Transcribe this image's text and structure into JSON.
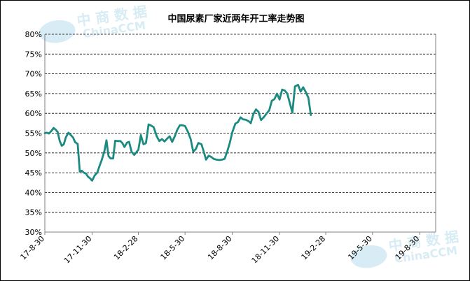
{
  "colors": {
    "line": "#1b8a80",
    "grid": "#000000",
    "axis": "#808080",
    "text": "#000000",
    "watermark": "#d7ecf4"
  },
  "watermark": {
    "chinese": "中 商 数 据",
    "latin": "ChinaCCM"
  },
  "chart_data": {
    "type": "line",
    "title": "中国尿素厂家近两年开工率走势图",
    "xlabel": "",
    "ylabel": "",
    "y_unit": "%",
    "ylim": [
      30,
      80
    ],
    "y_ticks": [
      30,
      35,
      40,
      45,
      50,
      55,
      60,
      65,
      70,
      75,
      80
    ],
    "y_tick_labels": [
      "30%",
      "35%",
      "40%",
      "45%",
      "50%",
      "55%",
      "60%",
      "65%",
      "70%",
      "75%",
      "80%"
    ],
    "grid": true,
    "legend": "none",
    "x_start": "17-8-30",
    "x_end": "19-9-30",
    "x_tick_labels": [
      "17-8-30",
      "17-11-30",
      "18-2-28",
      "18-5-30",
      "18-8-30",
      "18-11-30",
      "19-2-28",
      "19-5-30",
      "19-8-30"
    ],
    "series": [
      {
        "points": [
          [
            "17-8-30",
            55.0
          ],
          [
            "17-9-3",
            55.1
          ],
          [
            "17-9-7",
            54.9
          ],
          [
            "17-9-12",
            55.6
          ],
          [
            "17-9-16",
            56.3
          ],
          [
            "17-9-20",
            55.9
          ],
          [
            "17-9-24",
            55.3
          ],
          [
            "17-9-28",
            53.0
          ],
          [
            "17-10-2",
            51.8
          ],
          [
            "17-10-6",
            52.2
          ],
          [
            "17-10-10",
            54.0
          ],
          [
            "17-10-15",
            55.1
          ],
          [
            "17-10-19",
            54.6
          ],
          [
            "17-10-24",
            53.9
          ],
          [
            "17-10-28",
            52.7
          ],
          [
            "17-11-2",
            52.3
          ],
          [
            "17-11-6",
            45.3
          ],
          [
            "17-11-10",
            45.5
          ],
          [
            "17-11-14",
            45.0
          ],
          [
            "17-11-18",
            44.8
          ],
          [
            "17-11-22",
            44.0
          ],
          [
            "17-11-26",
            43.6
          ],
          [
            "17-11-30",
            43.0
          ],
          [
            "17-12-5",
            44.3
          ],
          [
            "17-12-10",
            45.0
          ],
          [
            "17-12-14",
            46.5
          ],
          [
            "17-12-19",
            48.3
          ],
          [
            "17-12-24",
            50.5
          ],
          [
            "17-12-28",
            53.2
          ],
          [
            "18-1-1",
            49.2
          ],
          [
            "18-1-5",
            48.6
          ],
          [
            "18-1-10",
            48.6
          ],
          [
            "18-1-14",
            53.1
          ],
          [
            "18-1-19",
            53.0
          ],
          [
            "18-1-24",
            53.0
          ],
          [
            "18-1-28",
            52.5
          ],
          [
            "18-2-1",
            51.5
          ],
          [
            "18-2-6",
            52.6
          ],
          [
            "18-2-10",
            52.8
          ],
          [
            "18-2-15",
            50.3
          ],
          [
            "18-2-20",
            49.5
          ],
          [
            "18-2-28",
            50.8
          ],
          [
            "18-3-5",
            54.5
          ],
          [
            "18-3-10",
            52.2
          ],
          [
            "18-3-15",
            52.5
          ],
          [
            "18-3-20",
            57.2
          ],
          [
            "18-3-25",
            56.9
          ],
          [
            "18-3-30",
            56.5
          ],
          [
            "18-4-5",
            54.2
          ],
          [
            "18-4-10",
            53.0
          ],
          [
            "18-4-15",
            53.5
          ],
          [
            "18-4-20",
            52.9
          ],
          [
            "18-4-25",
            53.6
          ],
          [
            "18-4-30",
            54.2
          ],
          [
            "18-5-5",
            52.8
          ],
          [
            "18-5-10",
            54.2
          ],
          [
            "18-5-15",
            55.9
          ],
          [
            "18-5-20",
            57.0
          ],
          [
            "18-5-25",
            57.0
          ],
          [
            "18-5-30",
            56.8
          ],
          [
            "18-6-5",
            55.2
          ],
          [
            "18-6-10",
            53.5
          ],
          [
            "18-6-15",
            50.3
          ],
          [
            "18-6-20",
            51.0
          ],
          [
            "18-6-25",
            52.5
          ],
          [
            "18-7-1",
            52.2
          ],
          [
            "18-7-5",
            50.5
          ],
          [
            "18-7-10",
            48.3
          ],
          [
            "18-7-15",
            49.3
          ],
          [
            "18-7-20",
            49.0
          ],
          [
            "18-7-25",
            48.5
          ],
          [
            "18-7-30",
            48.3
          ],
          [
            "18-8-5",
            48.2
          ],
          [
            "18-8-10",
            48.3
          ],
          [
            "18-8-15",
            48.5
          ],
          [
            "18-8-20",
            50.3
          ],
          [
            "18-8-25",
            52.5
          ],
          [
            "18-8-30",
            55.2
          ],
          [
            "18-9-5",
            57.4
          ],
          [
            "18-9-10",
            57.8
          ],
          [
            "18-9-15",
            59.0
          ],
          [
            "18-9-20",
            58.5
          ],
          [
            "18-9-25",
            58.4
          ],
          [
            "18-10-1",
            58.0
          ],
          [
            "18-10-5",
            57.5
          ],
          [
            "18-10-10",
            59.8
          ],
          [
            "18-10-15",
            61.0
          ],
          [
            "18-10-20",
            60.4
          ],
          [
            "18-10-25",
            58.3
          ],
          [
            "18-10-30",
            59.0
          ],
          [
            "18-11-5",
            60.0
          ],
          [
            "18-11-10",
            60.8
          ],
          [
            "18-11-15",
            63.2
          ],
          [
            "18-11-20",
            63.6
          ],
          [
            "18-11-25",
            65.0
          ],
          [
            "18-11-30",
            63.5
          ],
          [
            "18-12-5",
            66.0
          ],
          [
            "18-12-10",
            65.8
          ],
          [
            "18-12-15",
            65.0
          ],
          [
            "18-12-20",
            62.6
          ],
          [
            "18-12-25",
            60.2
          ],
          [
            "18-12-30",
            66.8
          ],
          [
            "19-1-5",
            67.2
          ],
          [
            "19-1-10",
            65.5
          ],
          [
            "19-1-15",
            66.6
          ],
          [
            "19-1-20",
            65.4
          ],
          [
            "19-1-25",
            64.0
          ],
          [
            "19-1-30",
            59.6
          ]
        ]
      }
    ]
  }
}
